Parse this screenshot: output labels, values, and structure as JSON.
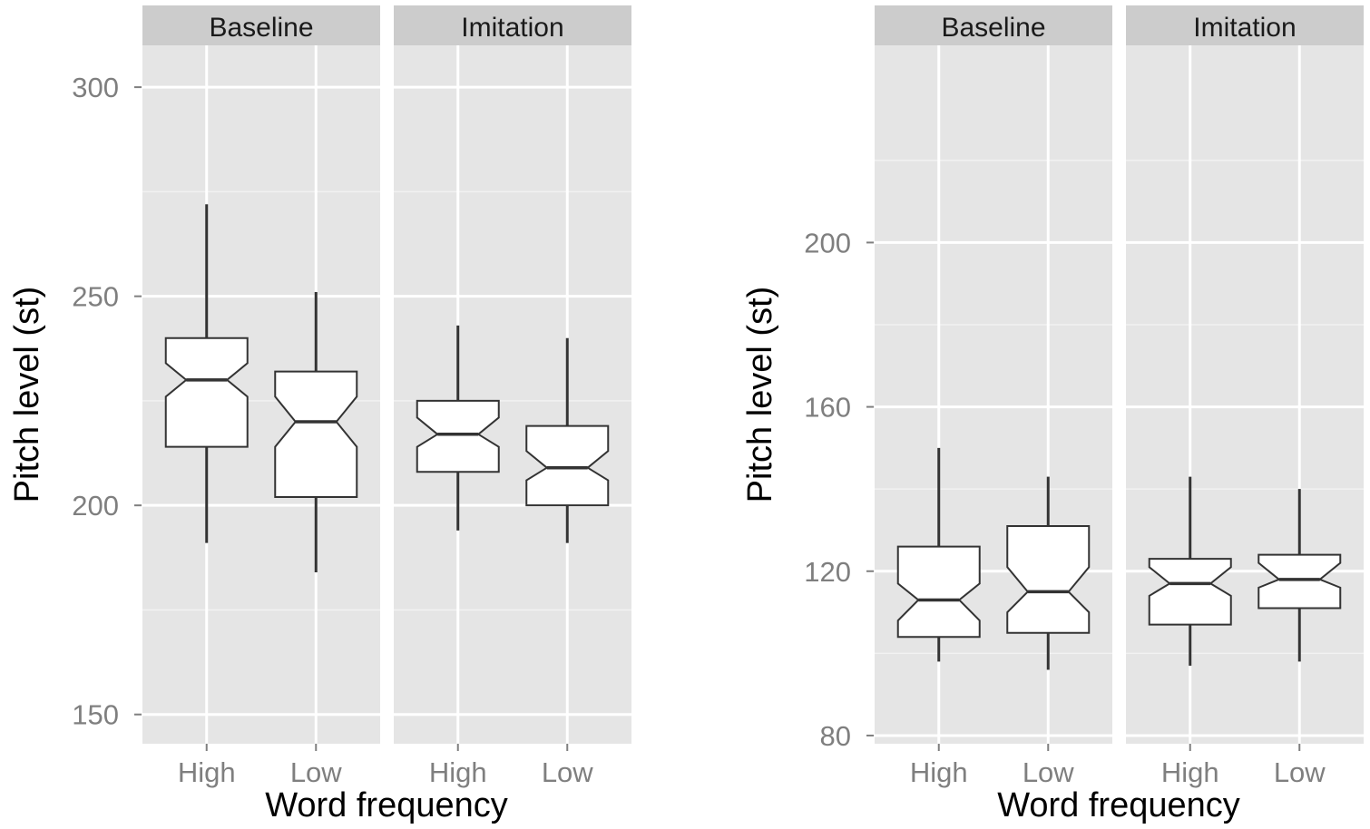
{
  "chart_data": [
    {
      "type": "boxplot",
      "notched": true,
      "xlabel": "Word frequency",
      "ylabel": "Pitch level (st)",
      "ylim": [
        143,
        310
      ],
      "yticks": [
        150,
        200,
        250,
        300
      ],
      "grid": true,
      "facets": [
        {
          "label": "Baseline",
          "categories": [
            "High",
            "Low"
          ],
          "boxes": [
            {
              "category": "High",
              "whisker_low": 191,
              "q1": 214,
              "median": 230,
              "q3": 240,
              "whisker_high": 272,
              "notch_low": 226,
              "notch_high": 234
            },
            {
              "category": "Low",
              "whisker_low": 184,
              "q1": 202,
              "median": 220,
              "q3": 232,
              "whisker_high": 251,
              "notch_low": 214,
              "notch_high": 226
            }
          ]
        },
        {
          "label": "Imitation",
          "categories": [
            "High",
            "Low"
          ],
          "boxes": [
            {
              "category": "High",
              "whisker_low": 194,
              "q1": 208,
              "median": 217,
              "q3": 225,
              "whisker_high": 243,
              "notch_low": 214,
              "notch_high": 221
            },
            {
              "category": "Low",
              "whisker_low": 191,
              "q1": 200,
              "median": 209,
              "q3": 219,
              "whisker_high": 240,
              "notch_low": 206,
              "notch_high": 213
            }
          ]
        }
      ]
    },
    {
      "type": "boxplot",
      "notched": true,
      "xlabel": "Word frequency",
      "ylabel": "Pitch level (st)",
      "ylim": [
        78,
        248
      ],
      "yticks": [
        80,
        120,
        160,
        200
      ],
      "grid": true,
      "facets": [
        {
          "label": "Baseline",
          "categories": [
            "High",
            "Low"
          ],
          "boxes": [
            {
              "category": "High",
              "whisker_low": 98,
              "q1": 104,
              "median": 113,
              "q3": 126,
              "whisker_high": 150,
              "notch_low": 108,
              "notch_high": 117
            },
            {
              "category": "Low",
              "whisker_low": 96,
              "q1": 105,
              "median": 115,
              "q3": 131,
              "whisker_high": 143,
              "notch_low": 110,
              "notch_high": 121
            }
          ]
        },
        {
          "label": "Imitation",
          "categories": [
            "High",
            "Low"
          ],
          "boxes": [
            {
              "category": "High",
              "whisker_low": 97,
              "q1": 107,
              "median": 117,
              "q3": 123,
              "whisker_high": 143,
              "notch_low": 114,
              "notch_high": 121
            },
            {
              "category": "Low",
              "whisker_low": 98,
              "q1": 111,
              "median": 118,
              "q3": 124,
              "whisker_high": 140,
              "notch_low": 116,
              "notch_high": 122
            }
          ]
        }
      ]
    }
  ]
}
